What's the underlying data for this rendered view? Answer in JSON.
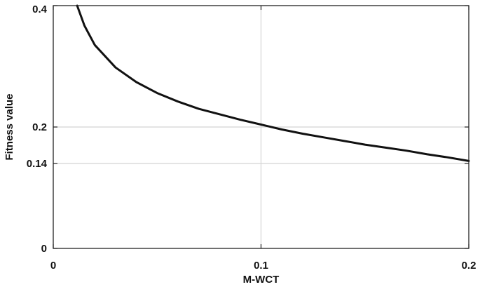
{
  "chart_data": {
    "type": "line",
    "title": "",
    "xlabel": "M-WCT",
    "ylabel": "Fitness value",
    "xlim": [
      0,
      0.2
    ],
    "ylim": [
      0,
      0.4
    ],
    "xticks": [
      0,
      0.1,
      0.2
    ],
    "xtick_labels": [
      "0",
      "0.1",
      "0.2"
    ],
    "yticks": [
      0,
      0.14,
      0.2,
      0.4
    ],
    "ytick_labels": [
      "0",
      "0.14",
      "0.2",
      "0.4"
    ],
    "grid": true,
    "series": [
      {
        "color": "#111111",
        "x": [
          0.0115,
          0.015,
          0.02,
          0.03,
          0.04,
          0.05,
          0.06,
          0.07,
          0.08,
          0.09,
          0.1,
          0.11,
          0.12,
          0.13,
          0.14,
          0.15,
          0.16,
          0.17,
          0.18,
          0.19,
          0.2
        ],
        "y": [
          0.4,
          0.367,
          0.335,
          0.298,
          0.274,
          0.256,
          0.242,
          0.23,
          0.221,
          0.212,
          0.204,
          0.196,
          0.189,
          0.183,
          0.177,
          0.171,
          0.166,
          0.161,
          0.155,
          0.15,
          0.144
        ]
      }
    ]
  }
}
